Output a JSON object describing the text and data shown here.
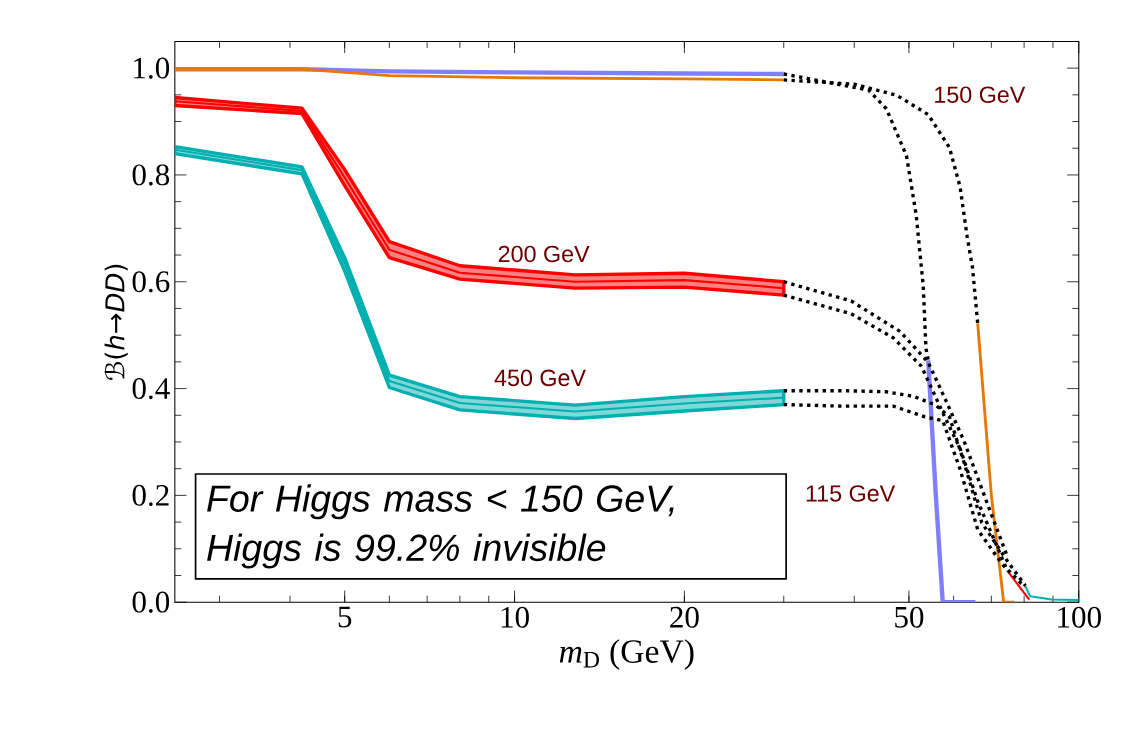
{
  "chart_data": {
    "type": "line",
    "xlabel": "*m*$_{D}$ (GeV)",
    "ylabel": "ℬ(*h*→*DD*)",
    "log": "x",
    "xlim": [
      2.5,
      100
    ],
    "ylim": [
      0,
      1.05
    ],
    "xticks": [
      5,
      10,
      20,
      50,
      100
    ],
    "yticks": [
      {
        "value": 0,
        "label": "0.0"
      },
      {
        "value": 0.2,
        "label": "0.2"
      },
      {
        "value": 0.4,
        "label": "0.4"
      },
      {
        "value": 0.6,
        "label": "0.6"
      },
      {
        "value": 0.8,
        "label": "0.8"
      },
      {
        "value": 1,
        "label": "1.0"
      }
    ],
    "series": [
      {
        "color": "#8080ff",
        "line_style": "solid",
        "x": [
          2.5,
          4.2,
          6,
          10,
          20,
          30,
          40,
          54.1,
          55.8,
          57.4,
          65.6
        ],
        "values": [
          0.998,
          0.998,
          0.994,
          0.992,
          0.99,
          0.989,
          null,
          0.453,
          0.2,
          0,
          0
        ]
      },
      {
        "color": "#e87800",
        "line_style": "solid",
        "x": [
          2.5,
          4.2,
          6,
          10,
          20,
          30,
          40,
          66.2,
          70.0,
          73.6,
          76.9
        ],
        "values": [
          0.998,
          0.998,
          0.986,
          0.982,
          0.98,
          0.978,
          null,
          0.522,
          0.2,
          0,
          0
        ]
      },
      {
        "color": "#ff0000",
        "line_style": "solid",
        "x": [
          2.5,
          4.2,
          5,
          6,
          8,
          12.8,
          20,
          30,
          50,
          74.8,
          81.7
        ],
        "values": [
          0.938,
          0.92,
          0.795,
          0.66,
          0.617,
          0.6,
          0.603,
          0.588,
          null,
          0.058,
          0.005
        ],
        "lower": [
          0.93,
          0.915,
          0.78,
          0.645,
          0.605,
          0.588,
          0.59,
          0.575,
          null,
          null,
          null
        ],
        "upper": [
          0.945,
          0.925,
          0.81,
          0.675,
          0.63,
          0.613,
          0.616,
          0.6,
          null,
          null,
          null
        ]
      },
      {
        "color": "#00b0b0",
        "line_style": "solid",
        "x": [
          2.5,
          4.2,
          5,
          6,
          8,
          12.8,
          20,
          30,
          50,
          80.4,
          82,
          89.5,
          100
        ],
        "values": [
          0.847,
          0.809,
          0.633,
          0.414,
          0.373,
          0.357,
          0.372,
          0.383,
          null,
          0.03,
          0.011,
          0.005,
          0.004
        ],
        "lower": [
          0.84,
          0.802,
          0.62,
          0.402,
          0.36,
          0.344,
          0.358,
          0.37,
          null,
          null,
          null,
          null,
          null
        ],
        "upper": [
          0.853,
          0.815,
          0.645,
          0.425,
          0.385,
          0.369,
          0.385,
          0.396,
          null,
          null,
          null,
          null,
          null
        ]
      },
      {
        "type": "line",
        "color": "#000000",
        "line_style": "dotted",
        "x": [
          30,
          42.4,
          45.6,
          49.5,
          51.5,
          53.0,
          53.6,
          54.1
        ],
        "values": [
          0.989,
          0.959,
          0.924,
          0.836,
          0.725,
          0.593,
          0.475,
          0.453
        ]
      },
      {
        "type": "line",
        "color": "#000000",
        "line_style": "dotted",
        "x": [
          30,
          40,
          47.6,
          54.1,
          59.0,
          61.6,
          63.4,
          64.8,
          66.2
        ],
        "values": [
          0.978,
          0.97,
          0.949,
          0.913,
          0.851,
          0.778,
          0.685,
          0.627,
          0.522
        ]
      },
      {
        "type": "line",
        "color": "#000000",
        "line_style": "dotted",
        "x": [
          30,
          39.5,
          48.2,
          54.1,
          58.0,
          62.6,
          68.0,
          74.8
        ],
        "values": [
          0.6,
          0.564,
          0.507,
          0.449,
          0.38,
          0.302,
          0.2,
          0.084
        ]
      },
      {
        "type": "line",
        "color": "#000000",
        "line_style": "dotted",
        "x": [
          30,
          39.5,
          46.9,
          52.6,
          57.4,
          61.6,
          66.2,
          72.2,
          74.8
        ],
        "values": [
          0.575,
          0.54,
          0.495,
          0.442,
          0.355,
          0.288,
          0.189,
          0.096,
          0.058
        ]
      },
      {
        "type": "line",
        "color": "#000000",
        "line_style": "dotted",
        "x": [
          30,
          38.3,
          45.6,
          51.1,
          55.8,
          59.0,
          62.6,
          67.3,
          75.4,
          80.4
        ],
        "values": [
          0.396,
          0.396,
          0.394,
          0.385,
          0.369,
          0.347,
          0.262,
          0.149,
          0.071,
          0.031
        ]
      },
      {
        "type": "line",
        "color": "#000000",
        "line_style": "dotted",
        "x": [
          30,
          38.3,
          46.9,
          53.4,
          57.4,
          61.6,
          66.2,
          73.2,
          79.1,
          80.4
        ],
        "values": [
          0.37,
          0.367,
          0.367,
          0.347,
          0.34,
          0.249,
          0.136,
          0.071,
          0.035,
          0.03
        ]
      }
    ],
    "annotations": [
      "150 GeV",
      "200 GeV",
      "450 GeV",
      "115 GeV",
      "*For Higgs mass < 150 GeV, Higgs is 99.2% invisible*"
    ]
  }
}
